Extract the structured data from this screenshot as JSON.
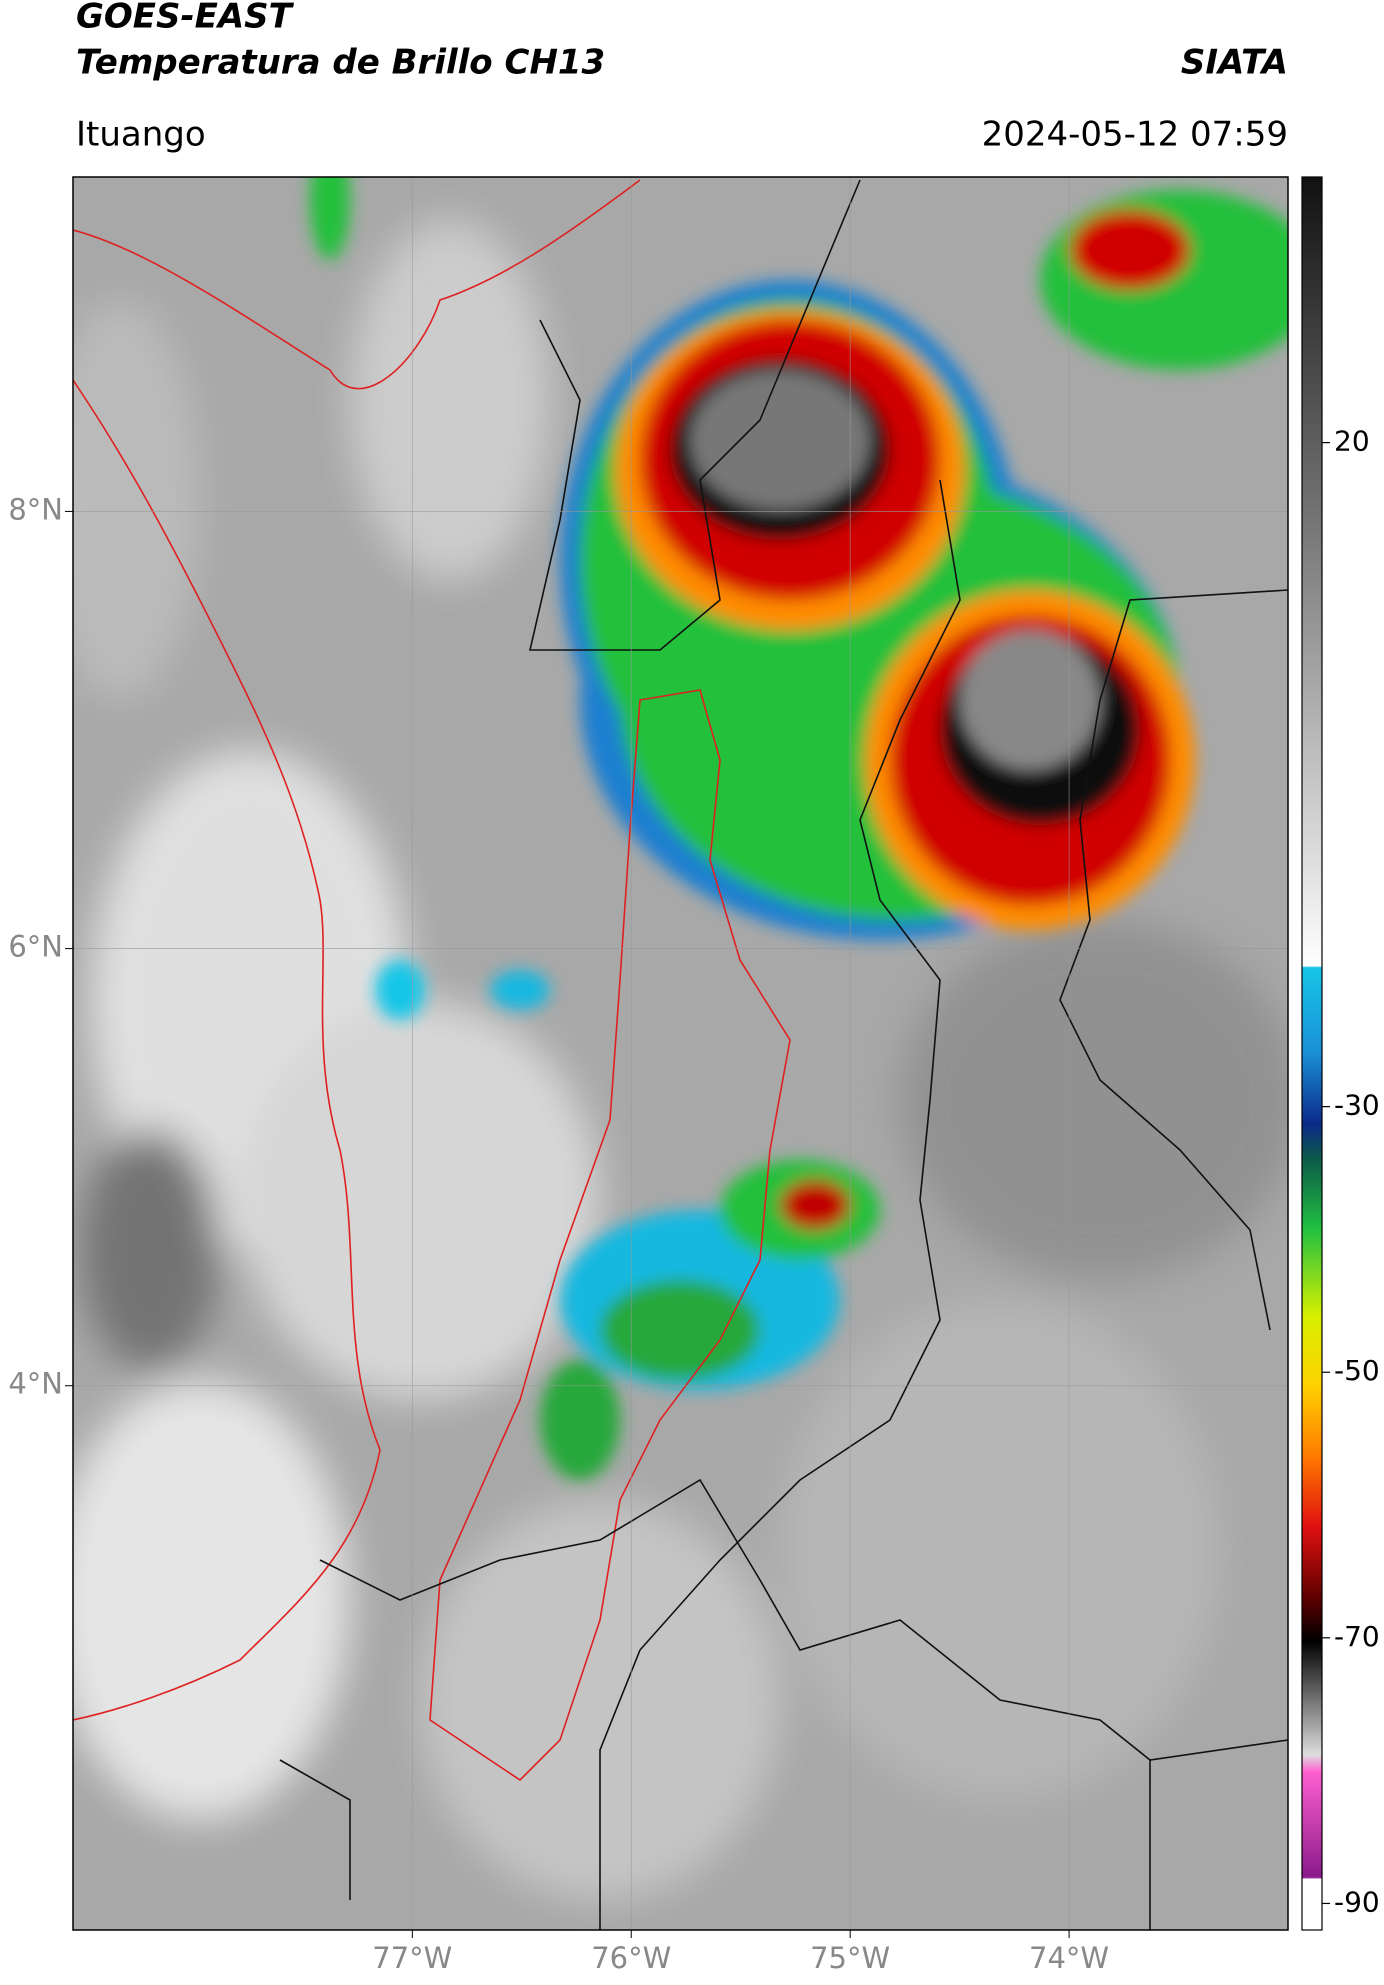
{
  "header": {
    "title": "GOES-EAST",
    "subtitle": "Temperatura de Brillo CH13",
    "source": "SIATA",
    "location": "Ituango",
    "datetime": "2024-05-12 07:59"
  },
  "map": {
    "xlim": [
      -78.55,
      -73.0
    ],
    "ylim": [
      1.51,
      9.53
    ],
    "xticks": [
      {
        "value": -77,
        "label": "77°W"
      },
      {
        "value": -76,
        "label": "76°W"
      },
      {
        "value": -75,
        "label": "75°W"
      },
      {
        "value": -74,
        "label": "74°W"
      }
    ],
    "yticks": [
      {
        "value": 8,
        "label": "8°N"
      },
      {
        "value": 6,
        "label": "6°N"
      },
      {
        "value": 4,
        "label": "4°N"
      }
    ],
    "grid": true
  },
  "colorbar": {
    "lim": [
      -92,
      40
    ],
    "ticks": [
      20,
      -30,
      -50,
      -70,
      -90
    ]
  }
}
